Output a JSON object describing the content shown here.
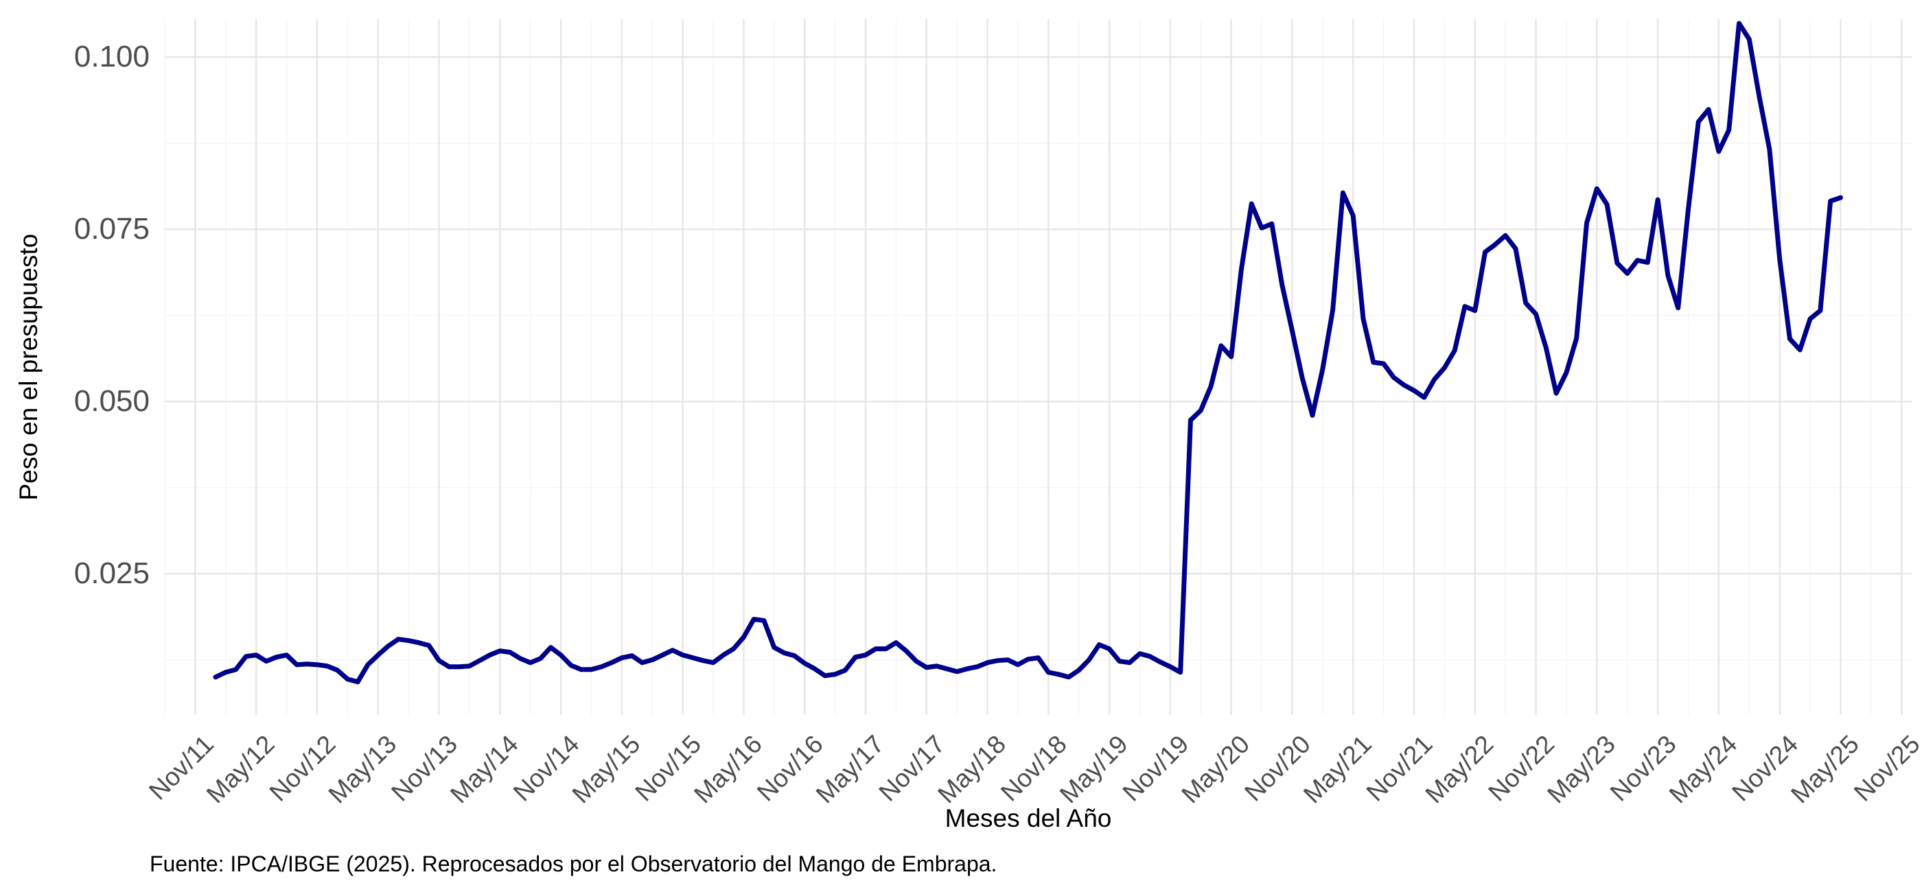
{
  "chart_data": {
    "type": "line",
    "title": "",
    "xlabel": "Meses del Año",
    "ylabel": "Peso en el presupuesto",
    "caption": "Fuente: IPCA/IBGE (2025). Reprocesados por el Observatorio del Mango de Embrapa.",
    "grid": true,
    "legend": "none",
    "line_color": "#00008B",
    "x_tick_labels": [
      "Nov/11",
      "May/12",
      "Nov/12",
      "May/13",
      "Nov/13",
      "May/14",
      "Nov/14",
      "May/15",
      "Nov/15",
      "May/16",
      "Nov/16",
      "May/17",
      "Nov/17",
      "May/18",
      "Nov/18",
      "May/19",
      "Nov/19",
      "May/20",
      "Nov/20",
      "May/21",
      "Nov/21",
      "May/22",
      "Nov/22",
      "May/23",
      "Nov/23",
      "May/24",
      "Nov/24",
      "May/25",
      "Nov/25"
    ],
    "y_ticks": [
      0.025,
      0.05,
      0.075,
      0.1
    ],
    "y_tick_labels": [
      "0.025",
      "0.050",
      "0.075",
      "0.100"
    ],
    "xlim": [
      "2011-08",
      "2025-12"
    ],
    "ylim": [
      0.0045,
      0.1055
    ],
    "series": [
      {
        "start": "2012-01",
        "values": [
          0.01,
          0.0107,
          0.0111,
          0.013,
          0.0132,
          0.0123,
          0.0129,
          0.0132,
          0.0118,
          0.0119,
          0.0118,
          0.0116,
          0.011,
          0.0097,
          0.0093,
          0.0118,
          0.0132,
          0.0145,
          0.0155,
          0.0153,
          0.015,
          0.0146,
          0.0124,
          0.0115,
          0.0115,
          0.0116,
          0.0124,
          0.0132,
          0.0138,
          0.0136,
          0.0127,
          0.0121,
          0.0127,
          0.0143,
          0.0132,
          0.0117,
          0.0111,
          0.0111,
          0.0115,
          0.0121,
          0.0128,
          0.0131,
          0.0121,
          0.0125,
          0.0132,
          0.0139,
          0.0132,
          0.0128,
          0.0124,
          0.0121,
          0.0132,
          0.0141,
          0.0158,
          0.0184,
          0.0182,
          0.0143,
          0.0135,
          0.0131,
          0.012,
          0.0112,
          0.0102,
          0.0104,
          0.011,
          0.0129,
          0.0132,
          0.0141,
          0.0141,
          0.015,
          0.0138,
          0.0123,
          0.0114,
          0.0116,
          0.0112,
          0.0108,
          0.0112,
          0.0115,
          0.0121,
          0.0124,
          0.0125,
          0.0118,
          0.0126,
          0.0128,
          0.0107,
          0.0104,
          0.01,
          0.011,
          0.0125,
          0.0147,
          0.0141,
          0.0123,
          0.0121,
          0.0134,
          0.013,
          0.0122,
          0.0115,
          0.0107,
          0.0473,
          0.0487,
          0.0522,
          0.0581,
          0.0565,
          0.0692,
          0.0787,
          0.0752,
          0.0758,
          0.067,
          0.0603,
          0.0534,
          0.048,
          0.0547,
          0.0633,
          0.0803,
          0.077,
          0.062,
          0.0557,
          0.0555,
          0.0535,
          0.0524,
          0.0516,
          0.0506,
          0.0532,
          0.0549,
          0.0574,
          0.0638,
          0.0632,
          0.0717,
          0.0728,
          0.0741,
          0.0722,
          0.0643,
          0.0627,
          0.0578,
          0.0512,
          0.0542,
          0.0592,
          0.0759,
          0.0809,
          0.0786,
          0.0701,
          0.0686,
          0.0705,
          0.0702,
          0.0793,
          0.0683,
          0.0636,
          0.0779,
          0.0906,
          0.0924,
          0.0863,
          0.0894,
          0.1049,
          0.1026,
          0.0942,
          0.0866,
          0.0707,
          0.0591,
          0.0575,
          0.062,
          0.0632,
          0.0791,
          0.0796
        ]
      }
    ]
  }
}
